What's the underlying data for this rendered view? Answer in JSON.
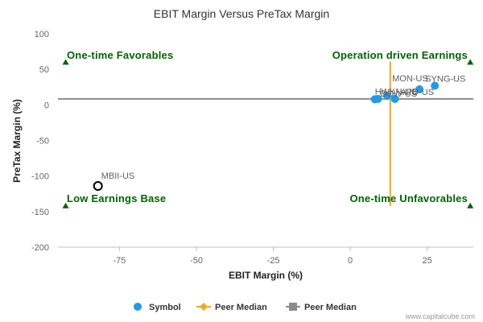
{
  "chart_data": {
    "type": "scatter",
    "title": "EBIT Margin Versus PreTax Margin",
    "xlabel": "EBIT Margin (%)",
    "ylabel": "PreTax Margin (%)",
    "xlim": [
      -95,
      40
    ],
    "ylim": [
      -200,
      100
    ],
    "xticks": [
      -75,
      -50,
      -25,
      0,
      25
    ],
    "yticks": [
      100,
      50,
      0,
      -50,
      -100,
      -150,
      -200
    ],
    "grid": false,
    "legend_position": "bottom",
    "quadrants": {
      "top_left": "One-time Favorables",
      "top_right": "Operation driven Earnings",
      "bottom_left": "Low Earnings Base",
      "bottom_right": "One-time Unfavorables"
    },
    "quadrant_markers": [
      {
        "x": -92.5,
        "y": 60
      },
      {
        "x": 39,
        "y": 60
      },
      {
        "x": -92.5,
        "y": -142
      },
      {
        "x": 39,
        "y": -142
      }
    ],
    "peer_median_x": 13,
    "peer_median_y": 8.5,
    "peer_median_line_range": {
      "x_line_y": [
        -142,
        61
      ],
      "y_line_x": [
        -95,
        40
      ]
    },
    "points": [
      {
        "label": "MON-US",
        "x": 22.5,
        "y": 22,
        "hollow": false
      },
      {
        "label": "SYNG-US",
        "x": 27.5,
        "y": 27,
        "hollow": false
      },
      {
        "label": "DOW-US",
        "x": 14.5,
        "y": 8.5,
        "hollow": false
      },
      {
        "label": "HWKN-US",
        "x": 8,
        "y": 8,
        "hollow": false
      },
      {
        "label": "APD-US",
        "x": 9,
        "y": 8.5,
        "hollow": false
      },
      {
        "label": "",
        "x": 12,
        "y": 13,
        "hollow": false
      },
      {
        "label": "MBII-US",
        "x": -82,
        "y": -114,
        "hollow": true
      }
    ],
    "legend": [
      {
        "label": "Symbol",
        "type": "circle"
      },
      {
        "label": "Peer Median",
        "type": "diamond-line"
      },
      {
        "label": "Peer Median",
        "type": "square-line"
      }
    ],
    "credit": "www.capitalcube.com"
  },
  "colors": {
    "symbol": "#1e9be9",
    "peer_median_x": "#f5a623",
    "peer_median_y": "#8c8c8c",
    "quadrant": "#006400",
    "hollow": "#000000"
  }
}
